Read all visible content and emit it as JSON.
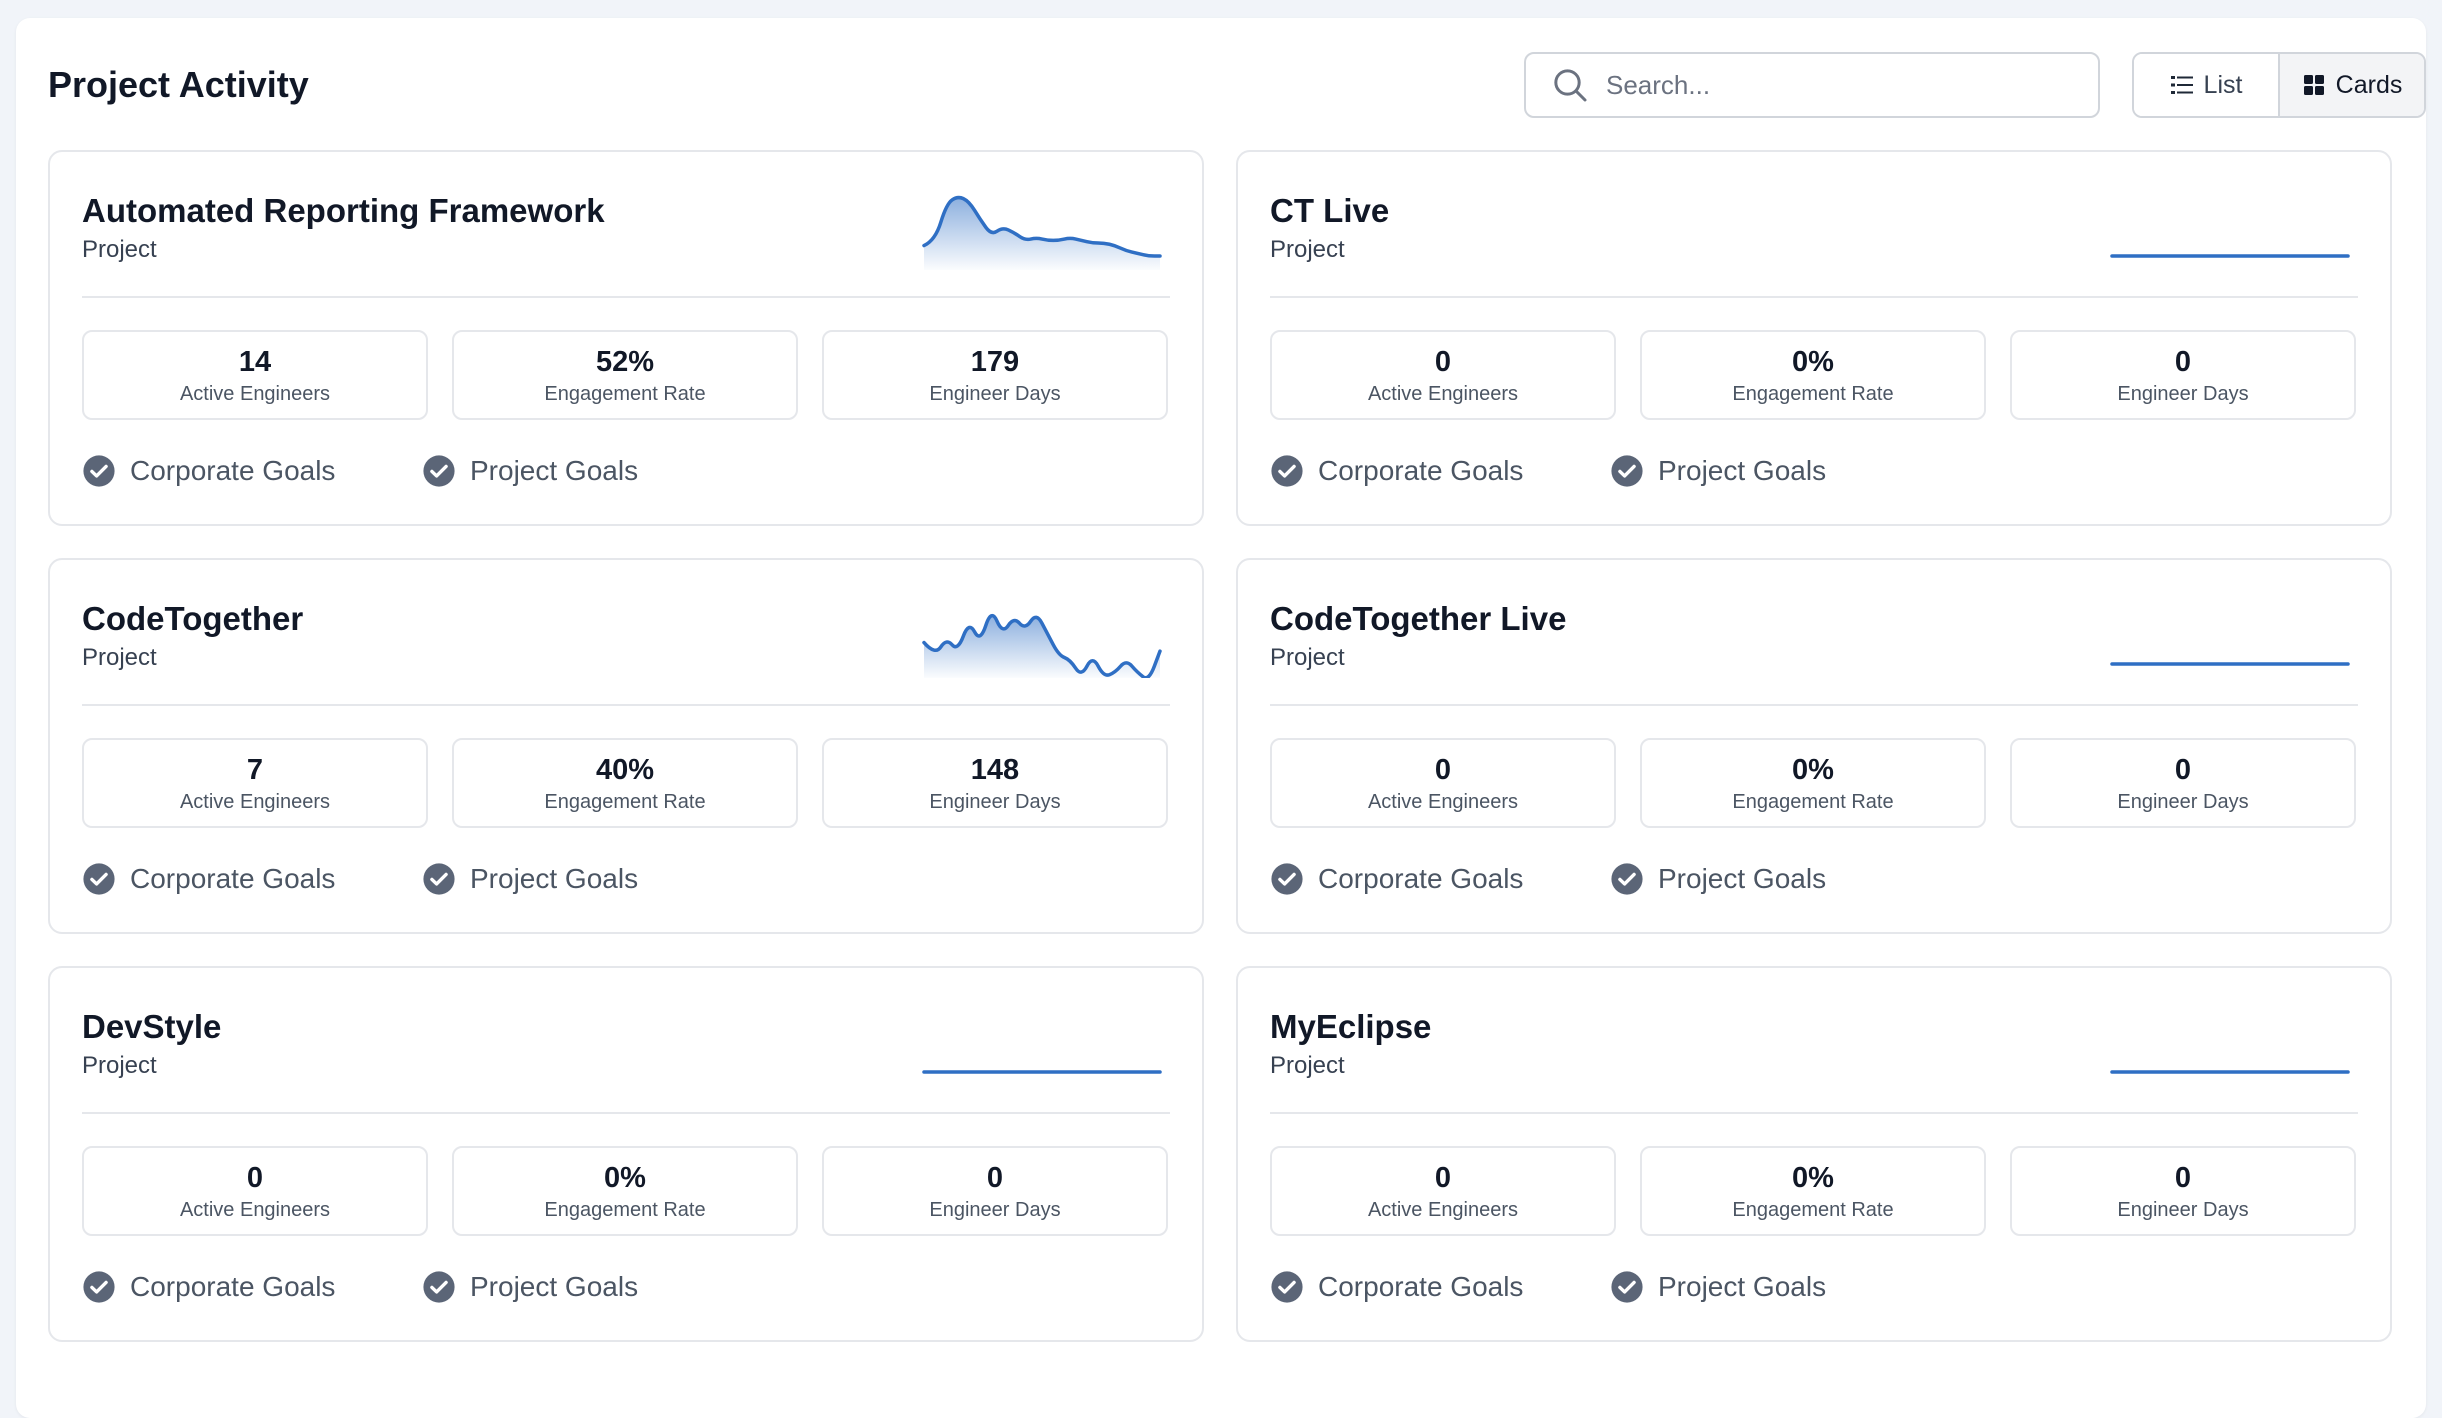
{
  "header": {
    "title": "Project Activity",
    "search_placeholder": "Search...",
    "view_list_label": "List",
    "view_cards_label": "Cards",
    "active_view": "Cards"
  },
  "colors": {
    "accent": "#2f6fc4",
    "check_icon": "#5b6577"
  },
  "stat_labels": {
    "engineers": "Active Engineers",
    "engagement": "Engagement Rate",
    "days": "Engineer Days"
  },
  "goal_labels": {
    "corporate": "Corporate Goals",
    "project": "Project Goals"
  },
  "cards": [
    {
      "name": "Automated Reporting Framework",
      "type": "Project",
      "active_engineers": "14",
      "engagement_rate": "52%",
      "engineer_days": "179",
      "sparkline": [
        4,
        6,
        20,
        23,
        21,
        14,
        8,
        11,
        9,
        6,
        7,
        6,
        6,
        7,
        6,
        5,
        5,
        4,
        2,
        1,
        0,
        0
      ],
      "sparkline_max": 23
    },
    {
      "name": "CT Live",
      "type": "Project",
      "active_engineers": "0",
      "engagement_rate": "0%",
      "engineer_days": "0",
      "sparkline": [
        0,
        0,
        0,
        0,
        0,
        0,
        0,
        0,
        0,
        0
      ],
      "sparkline_max": 23
    },
    {
      "name": "CodeTogether",
      "type": "Project",
      "active_engineers": "7",
      "engagement_rate": "40%",
      "engineer_days": "148",
      "sparkline": [
        5,
        2,
        6,
        3,
        10,
        5,
        13,
        7,
        11,
        8,
        12,
        7,
        2,
        1,
        -3,
        2,
        -3,
        -2,
        1,
        -2,
        -4,
        3
      ],
      "sparkline_max": 14
    },
    {
      "name": "CodeTogether Live",
      "type": "Project",
      "active_engineers": "0",
      "engagement_rate": "0%",
      "engineer_days": "0",
      "sparkline": [
        0,
        0,
        0,
        0,
        0,
        0,
        0,
        0,
        0,
        0
      ],
      "sparkline_max": 23
    },
    {
      "name": "DevStyle",
      "type": "Project",
      "active_engineers": "0",
      "engagement_rate": "0%",
      "engineer_days": "0",
      "sparkline": [
        0,
        0,
        0,
        0,
        0,
        0,
        0,
        0,
        0,
        0
      ],
      "sparkline_max": 23
    },
    {
      "name": "MyEclipse",
      "type": "Project",
      "active_engineers": "0",
      "engagement_rate": "0%",
      "engineer_days": "0",
      "sparkline": [
        0,
        0,
        0,
        0,
        0,
        0,
        0,
        0,
        0,
        0
      ],
      "sparkline_max": 23
    }
  ]
}
